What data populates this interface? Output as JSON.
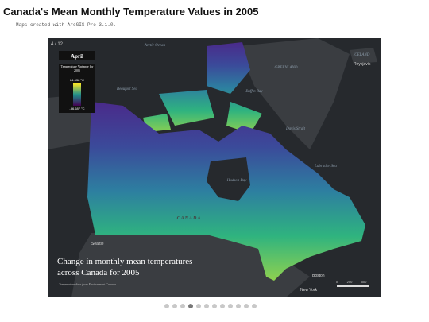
{
  "header": {
    "title": "Canada's Mean Monthly Temperature Values in 2005",
    "subtitle": "Maps created with ArcGIS Pro 3.1.0."
  },
  "slide": {
    "counter": "4 / 12",
    "month": "April"
  },
  "legend": {
    "title": "Temperature Variance for 2005",
    "max": "24.638 °C",
    "min": "-36.687 °C"
  },
  "caption": {
    "title": "Change in monthly mean temperatures across Canada for 2005",
    "credit": "Temperature data from Environment Canada"
  },
  "labels": {
    "arctic_ocean": "Arctic Ocean",
    "beaufort_sea": "Beaufort Sea",
    "baffin_bay": "Baffin Bay",
    "greenland": "GREENLAND",
    "iceland": "ICELAND",
    "reykjavik": "Reykjavik",
    "davis_strait": "Davis Strait",
    "labrador_sea": "Labrador Sea",
    "hudson_bay": "Hudson Bay",
    "canada": "CANADA",
    "seattle": "Seattle",
    "boston": "Boston",
    "new_york": "New York"
  },
  "scale": {
    "zero": "0",
    "mid": "250",
    "max": "500"
  }
}
